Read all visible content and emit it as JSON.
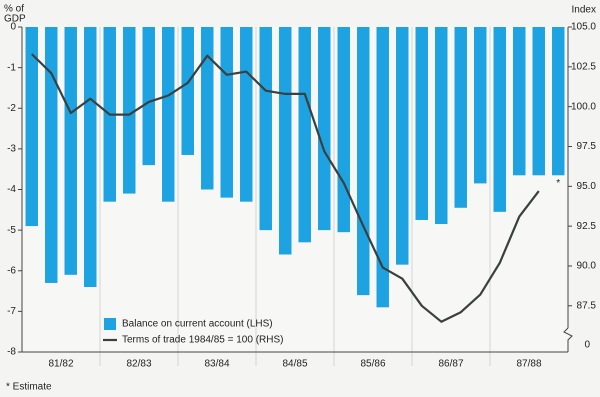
{
  "chart_data": {
    "type": "bar-line",
    "y_label": [
      "% of",
      "GDP"
    ],
    "y2_label": "Index",
    "categories": [
      null,
      null,
      null,
      null,
      null,
      null,
      null,
      null,
      null,
      null,
      null,
      null,
      null,
      null,
      null,
      null,
      null,
      null,
      null,
      null,
      null,
      null,
      null,
      null,
      null,
      null,
      null,
      null
    ],
    "groups": [
      "81/82",
      "82/83",
      "83/84",
      "84/85",
      "85/86",
      "86/87",
      "87/88"
    ],
    "ylim": [
      -8,
      0
    ],
    "yticks": [
      0,
      -1,
      -2,
      -3,
      -4,
      -5,
      -6,
      -7,
      -8
    ],
    "y2lim": [
      84.6,
      105
    ],
    "y2ticks": [
      {
        "value": 105,
        "label": "105.0"
      },
      {
        "value": 102.5,
        "label": "102.5"
      },
      {
        "value": 100,
        "label": "100.0"
      },
      {
        "value": 97.5,
        "label": "97.5"
      },
      {
        "value": 95,
        "label": "95.0"
      },
      {
        "value": 92.5,
        "label": "92.5"
      },
      {
        "value": 90,
        "label": "90.0"
      },
      {
        "value": 87.5,
        "label": "87.5"
      }
    ],
    "y2_break_label": "0",
    "series": [
      {
        "name": "Balance on current account (LHS)",
        "type": "bar",
        "color": "#1ea3e2",
        "values": [
          -4.9,
          -6.3,
          -6.1,
          -6.4,
          -4.3,
          -4.1,
          -3.4,
          -4.3,
          -3.15,
          -4.0,
          -4.2,
          -4.3,
          -5.0,
          -5.6,
          -5.3,
          -5.0,
          -5.05,
          -6.6,
          -6.9,
          -5.85,
          -4.75,
          -4.85,
          -4.45,
          -3.85,
          -4.55,
          -3.65,
          -3.65,
          -3.65
        ]
      },
      {
        "name": "Terms of trade 1984/85 = 100 (RHS)",
        "type": "line",
        "axis": "y2",
        "color": "#3b403e",
        "values": [
          103.3,
          102.1,
          99.6,
          100.5,
          99.5,
          99.5,
          100.3,
          100.7,
          101.5,
          103.2,
          102.0,
          102.2,
          101.0,
          100.8,
          100.8,
          97.2,
          95.2,
          92.5,
          89.9,
          89.2,
          87.5,
          86.5,
          87.1,
          88.2,
          90.2,
          93.1,
          94.7,
          null
        ]
      }
    ],
    "last_bar_marker": "*",
    "footnote": "* Estimate"
  }
}
